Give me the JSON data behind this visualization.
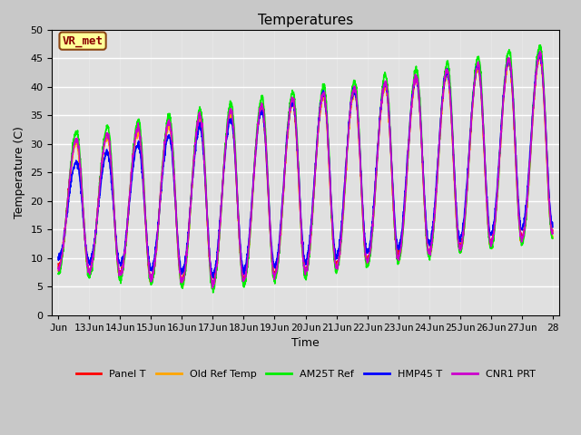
{
  "title": "Temperatures",
  "xlabel": "Time",
  "ylabel": "Temperature (C)",
  "ylim": [
    0,
    50
  ],
  "x_tick_labels": [
    "Jun",
    "13Jun",
    "14Jun",
    "15Jun",
    "16Jun",
    "17Jun",
    "18Jun",
    "19Jun",
    "20Jun",
    "21Jun",
    "22Jun",
    "23Jun",
    "24Jun",
    "25Jun",
    "26Jun",
    "27Jun",
    "28"
  ],
  "annotation_text": "VR_met",
  "annotation_box_color": "#FFFF99",
  "annotation_border_color": "#8B4513",
  "annotation_text_color": "#8B0000",
  "fig_bg_color": "#C8C8C8",
  "ax_bg_color": "#E0E0E0",
  "series": [
    {
      "label": "Panel T",
      "color": "#FF0000",
      "lw": 1.2
    },
    {
      "label": "Old Ref Temp",
      "color": "#FFA500",
      "lw": 1.2
    },
    {
      "label": "AM25T Ref",
      "color": "#00EE00",
      "lw": 1.2
    },
    {
      "label": "HMP45 T",
      "color": "#0000FF",
      "lw": 1.2
    },
    {
      "label": "CNR1 PRT",
      "color": "#CC00CC",
      "lw": 1.2
    }
  ],
  "title_fontsize": 11,
  "axis_label_fontsize": 9,
  "tick_fontsize": 8,
  "legend_fontsize": 8
}
